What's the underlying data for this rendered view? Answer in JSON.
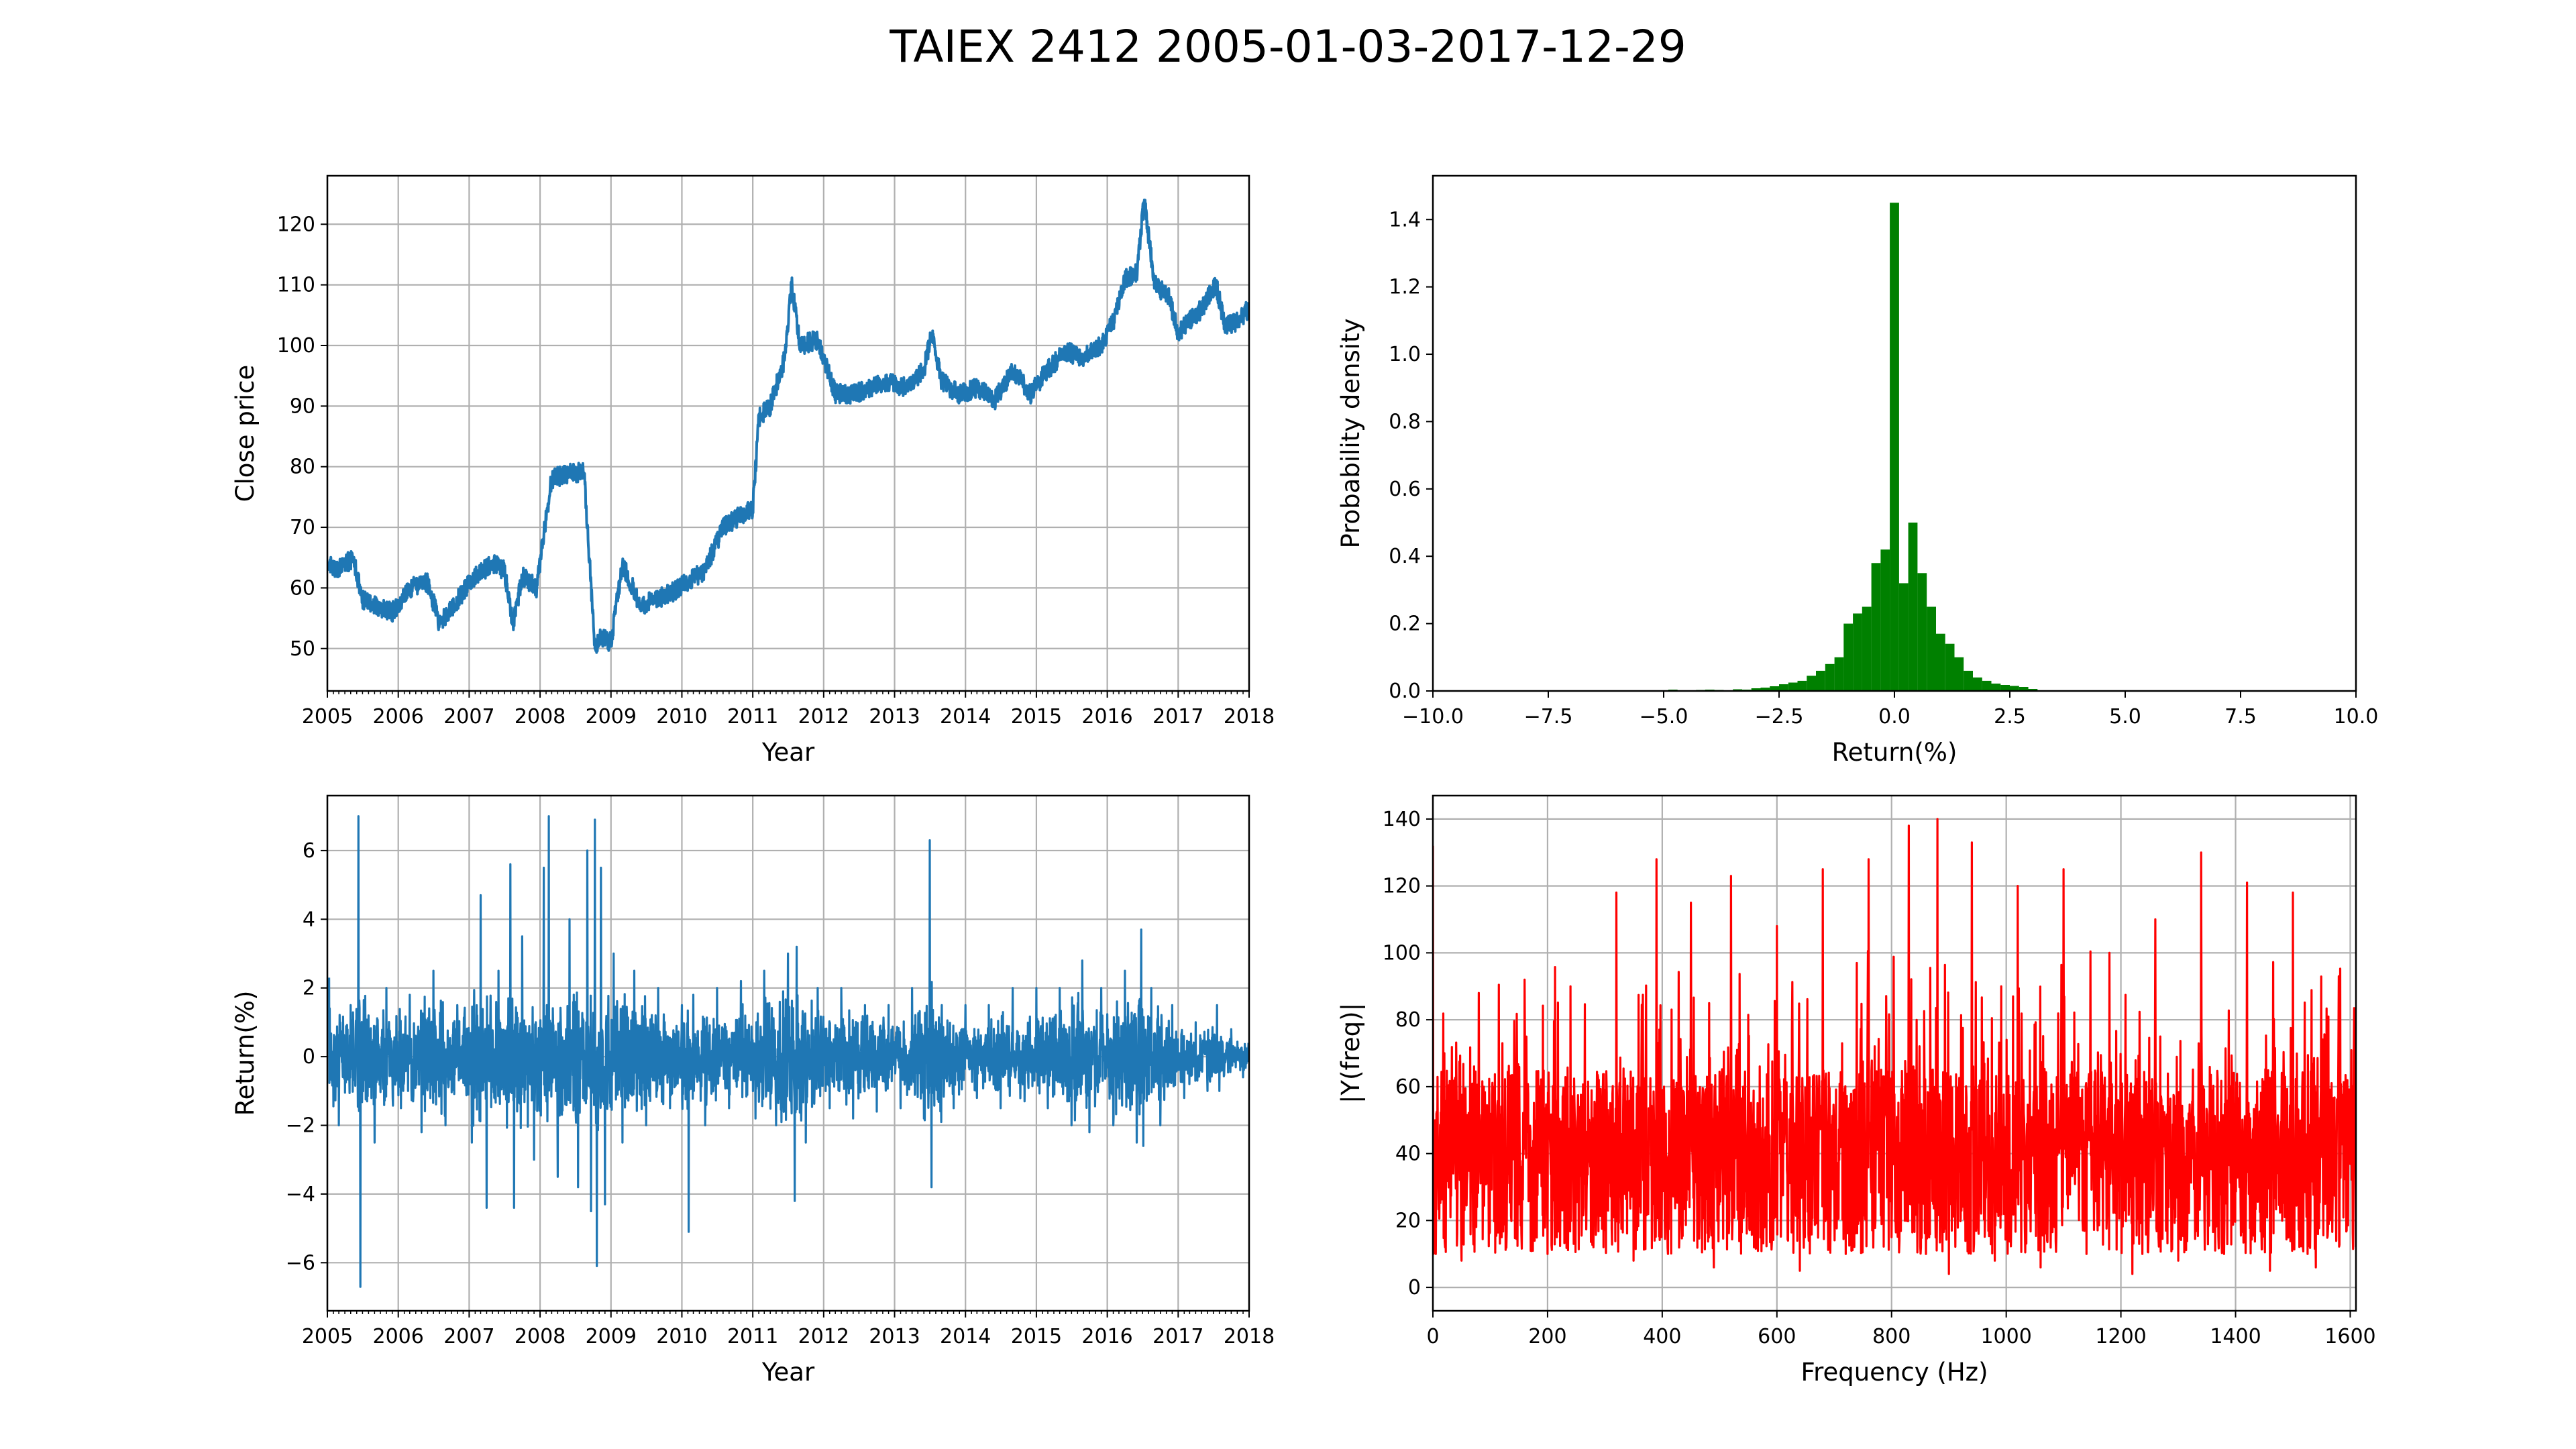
{
  "figure_title": "TAIEX 2412 2005-01-03-2017-12-29",
  "colors": {
    "price": "#1f77b4",
    "returns": "#1f77b4",
    "histogram": "#008000",
    "fft": "#ff0000"
  },
  "chart_data": [
    {
      "id": "price",
      "type": "line",
      "xlabel": "Year",
      "ylabel": "Close price",
      "xlim": [
        "2005-01-01",
        "2018-01-01"
      ],
      "ylim": [
        43,
        128
      ],
      "xticks": [
        "2005",
        "2006",
        "2007",
        "2008",
        "2009",
        "2010",
        "2011",
        "2012",
        "2013",
        "2014",
        "2015",
        "2016",
        "2017",
        "2018"
      ],
      "yticks": [
        50,
        60,
        70,
        80,
        90,
        100,
        110,
        120
      ],
      "grid": true,
      "series": [
        {
          "x": [
            "2005-01-03",
            "2005-03-01",
            "2005-05-15",
            "2005-07-01",
            "2005-09-01",
            "2005-12-01",
            "2006-03-01",
            "2006-06-01",
            "2006-08-01",
            "2006-11-01",
            "2007-02-01",
            "2007-05-01",
            "2007-07-01",
            "2007-08-15",
            "2007-10-01",
            "2007-12-15",
            "2008-01-15",
            "2008-03-01",
            "2008-06-01",
            "2008-08-15",
            "2008-10-10",
            "2008-11-15",
            "2009-01-01",
            "2009-03-01",
            "2009-06-01",
            "2009-08-01",
            "2009-11-01",
            "2010-02-01",
            "2010-05-01",
            "2010-08-01",
            "2010-11-01",
            "2011-01-01",
            "2011-02-01",
            "2011-04-01",
            "2011-06-15",
            "2011-07-20",
            "2011-09-01",
            "2011-12-01",
            "2012-03-01",
            "2012-06-01",
            "2012-09-01",
            "2012-12-01",
            "2013-03-01",
            "2013-06-01",
            "2013-07-10",
            "2013-09-01",
            "2013-12-01",
            "2014-03-01",
            "2014-06-01",
            "2014-09-01",
            "2014-12-01",
            "2015-03-01",
            "2015-06-01",
            "2015-09-01",
            "2015-12-01",
            "2016-02-01",
            "2016-04-01",
            "2016-06-01",
            "2016-07-10",
            "2016-09-01",
            "2016-11-15",
            "2017-01-01",
            "2017-03-01",
            "2017-05-01",
            "2017-07-15",
            "2017-09-01",
            "2017-11-01",
            "2017-12-29"
          ],
          "y": [
            64,
            63,
            65,
            58,
            57,
            56,
            60,
            61,
            54,
            58,
            62,
            64,
            63,
            54,
            62,
            60,
            68,
            78,
            79,
            79,
            50,
            52,
            51,
            64,
            57,
            58,
            59,
            61,
            63,
            70,
            72,
            73,
            88,
            90,
            98,
            110,
            100,
            101,
            92,
            92,
            93,
            94,
            93,
            96,
            102,
            94,
            92,
            93,
            91,
            96,
            92,
            96,
            99,
            98,
            100,
            104,
            111,
            112,
            124,
            110,
            108,
            102,
            104,
            106,
            110,
            103,
            104,
            106
          ]
        }
      ]
    },
    {
      "id": "histogram",
      "type": "bar",
      "xlabel": "Return(%)",
      "ylabel": "Probability density",
      "xlim": [
        -10,
        10
      ],
      "ylim": [
        0,
        1.53
      ],
      "xticks": [
        "−10.0",
        "−7.5",
        "−5.0",
        "−2.5",
        "0.0",
        "2.5",
        "5.0",
        "7.5",
        "10.0"
      ],
      "yticks": [
        "0.0",
        "0.2",
        "0.4",
        "0.6",
        "0.8",
        "1.0",
        "1.2",
        "1.4"
      ],
      "grid": false,
      "bins": [
        -4.8,
        -4.6,
        -4.4,
        -4.2,
        -4.0,
        -3.8,
        -3.6,
        -3.4,
        -3.2,
        -3.0,
        -2.8,
        -2.6,
        -2.4,
        -2.2,
        -2.0,
        -1.8,
        -1.6,
        -1.4,
        -1.2,
        -1.0,
        -0.8,
        -0.6,
        -0.4,
        -0.2,
        0.0,
        0.2,
        0.4,
        0.6,
        0.8,
        1.0,
        1.2,
        1.4,
        1.6,
        1.8,
        2.0,
        2.2,
        2.4,
        2.6,
        2.8,
        3.0
      ],
      "values": [
        0.004,
        0.0,
        0.002,
        0.003,
        0.004,
        0.003,
        0.002,
        0.005,
        0.004,
        0.008,
        0.01,
        0.014,
        0.02,
        0.025,
        0.03,
        0.045,
        0.06,
        0.08,
        0.1,
        0.2,
        0.23,
        0.25,
        0.38,
        0.42,
        1.45,
        0.32,
        0.5,
        0.35,
        0.25,
        0.17,
        0.14,
        0.1,
        0.06,
        0.04,
        0.03,
        0.022,
        0.018,
        0.015,
        0.012,
        0.006
      ],
      "series": [
        {
          "values": [
            0.004,
            0.0,
            0.002,
            0.003,
            0.004,
            0.003,
            0.002,
            0.005,
            0.004,
            0.008,
            0.01,
            0.014,
            0.02,
            0.025,
            0.03,
            0.045,
            0.06,
            0.08,
            0.1,
            0.2,
            0.23,
            0.25,
            0.38,
            0.42,
            1.45,
            0.32,
            0.5,
            0.35,
            0.25,
            0.17,
            0.14,
            0.1,
            0.06,
            0.04,
            0.03,
            0.022,
            0.018,
            0.015,
            0.012,
            0.006
          ]
        }
      ]
    },
    {
      "id": "returns",
      "type": "line",
      "xlabel": "Year",
      "ylabel": "Return(%)",
      "xlim": [
        "2005-01-01",
        "2018-01-01"
      ],
      "ylim": [
        -7.4,
        7.6
      ],
      "xticks": [
        "2005",
        "2006",
        "2007",
        "2008",
        "2009",
        "2010",
        "2011",
        "2012",
        "2013",
        "2014",
        "2015",
        "2016",
        "2017",
        "2018"
      ],
      "yticks": [
        "−6",
        "−4",
        "−2",
        "0",
        "2",
        "4",
        "6"
      ],
      "grid": true,
      "series": [
        {
          "x": [
            "2005-01-10",
            "2005-03-01",
            "2005-05-01",
            "2005-06-10",
            "2005-06-20",
            "2005-08-01",
            "2005-09-01",
            "2005-11-01",
            "2006-01-15",
            "2006-03-01",
            "2006-05-01",
            "2006-07-01",
            "2006-09-01",
            "2006-11-01",
            "2007-01-15",
            "2007-03-01",
            "2007-04-01",
            "2007-06-01",
            "2007-08-01",
            "2007-08-20",
            "2007-10-01",
            "2007-12-01",
            "2008-01-20",
            "2008-02-15",
            "2008-04-01",
            "2008-06-01",
            "2008-07-15",
            "2008-09-01",
            "2008-09-20",
            "2008-10-10",
            "2008-10-20",
            "2008-11-10",
            "2008-12-01",
            "2009-01-15",
            "2009-03-01",
            "2009-05-01",
            "2009-07-01",
            "2009-09-01",
            "2009-11-01",
            "2010-01-01",
            "2010-02-05",
            "2010-03-01",
            "2010-05-01",
            "2010-07-01",
            "2010-09-01",
            "2010-11-01",
            "2011-01-15",
            "2011-03-01",
            "2011-05-01",
            "2011-07-01",
            "2011-08-05",
            "2011-08-15",
            "2011-10-01",
            "2011-12-01",
            "2012-02-01",
            "2012-04-01",
            "2012-06-01",
            "2012-08-01",
            "2012-10-01",
            "2012-12-01",
            "2013-02-01",
            "2013-04-01",
            "2013-06-01",
            "2013-07-01",
            "2013-07-10",
            "2013-09-01",
            "2013-11-01",
            "2014-01-01",
            "2014-03-01",
            "2014-05-01",
            "2014-07-01",
            "2014-09-01",
            "2014-11-01",
            "2015-01-01",
            "2015-03-01",
            "2015-05-01",
            "2015-07-01",
            "2015-08-25",
            "2015-10-01",
            "2015-12-01",
            "2016-02-01",
            "2016-04-01",
            "2016-06-01",
            "2016-06-24",
            "2016-07-05",
            "2016-08-15",
            "2016-10-01",
            "2016-12-01",
            "2017-02-01",
            "2017-04-01",
            "2017-06-01",
            "2017-07-20",
            "2017-08-01",
            "2017-10-01",
            "2017-12-01",
            "2017-12-29"
          ],
          "y": [
            2.3,
            -2.0,
            1.5,
            7.0,
            -6.7,
            1.2,
            -2.5,
            2.0,
            -1.5,
            1.8,
            -2.2,
            2.5,
            -2.0,
            1.5,
            -2.5,
            4.7,
            -4.4,
            2.5,
            5.6,
            -4.4,
            3.5,
            -3.0,
            5.5,
            7.0,
            -3.5,
            4.0,
            -3.8,
            6.0,
            -4.5,
            6.9,
            -6.1,
            5.5,
            -4.3,
            3.0,
            -2.5,
            2.5,
            -2.0,
            2.0,
            -1.5,
            1.5,
            -5.1,
            1.8,
            -2.0,
            2.0,
            -1.5,
            2.2,
            -1.8,
            2.5,
            -2.0,
            3.0,
            -4.2,
            3.2,
            -2.5,
            2.0,
            -1.5,
            2.0,
            -1.8,
            1.5,
            -1.6,
            1.5,
            -1.5,
            2.0,
            -1.8,
            6.3,
            -3.8,
            1.5,
            -1.5,
            1.5,
            -1.2,
            1.5,
            -1.5,
            2.0,
            -1.3,
            2.0,
            -1.5,
            2.0,
            -2.0,
            2.8,
            -2.2,
            2.0,
            -2.0,
            2.5,
            -2.5,
            3.7,
            -2.6,
            2.0,
            -2.0,
            1.5,
            -1.2,
            1.0,
            -1.0,
            1.5,
            -1.0,
            0.8,
            -0.6,
            0.4
          ]
        }
      ]
    },
    {
      "id": "fft",
      "type": "line",
      "xlabel": "Frequency (Hz)",
      "ylabel": "|Y(freq)|",
      "xlim": [
        0,
        1610
      ],
      "ylim": [
        -7,
        147
      ],
      "xticks": [
        0,
        200,
        400,
        600,
        800,
        1000,
        1200,
        1400,
        1600
      ],
      "yticks": [
        0,
        20,
        40,
        60,
        80,
        100,
        120,
        140
      ],
      "grid": true,
      "series": [
        {
          "x": [
            0,
            5,
            20,
            50,
            80,
            120,
            160,
            200,
            240,
            280,
            320,
            350,
            390,
            410,
            450,
            490,
            520,
            560,
            600,
            640,
            680,
            720,
            760,
            800,
            830,
            860,
            880,
            900,
            940,
            980,
            1020,
            1060,
            1100,
            1140,
            1180,
            1220,
            1260,
            1300,
            1340,
            1380,
            1420,
            1460,
            1500,
            1540,
            1580,
            1610
          ],
          "y": [
            132,
            10,
            70,
            8,
            88,
            15,
            92,
            10,
            90,
            12,
            118,
            8,
            128,
            10,
            115,
            6,
            123,
            12,
            108,
            5,
            125,
            10,
            128,
            15,
            138,
            10,
            140,
            4,
            133,
            8,
            120,
            6,
            125,
            10,
            100,
            4,
            110,
            8,
            130,
            10,
            121,
            5,
            118,
            6,
            93,
            12
          ]
        }
      ]
    }
  ]
}
